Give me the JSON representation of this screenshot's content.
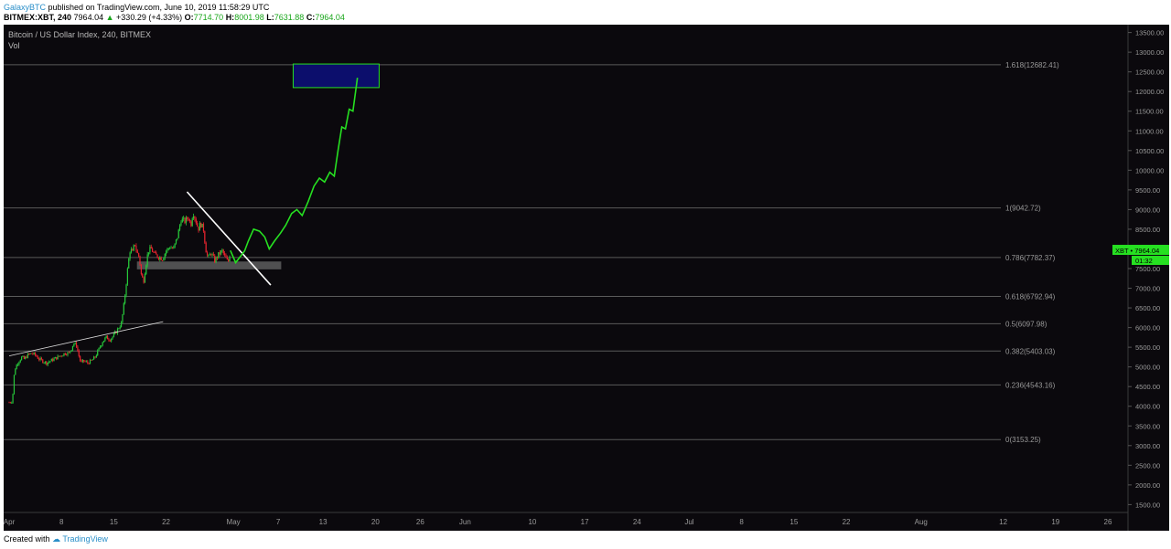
{
  "header": {
    "author": "GalaxyBTC",
    "published_text": "published on TradingView.com, June 10, 2019 11:58:29 UTC",
    "symbol_line": "BITMEX:XBT, 240",
    "last": "7964.04",
    "change_arrow": "▲",
    "change": "+330.29 (+4.33%)",
    "o_label": "O:",
    "o": "7714.70",
    "h_label": "H:",
    "h": "8001.98",
    "l_label": "L:",
    "l": "7631.88",
    "c_label": "C:",
    "c": "7964.04"
  },
  "footer": {
    "created_with": "Created with",
    "brand": "TradingView"
  },
  "colors": {
    "background": "#0b090d",
    "candle_up": "#27c93a",
    "candle_down": "#e8242e",
    "projection": "#26e021",
    "fib_line": "#5a5a5a",
    "target_box_fill": "#0c0e6c",
    "target_box_border": "#26e021",
    "support_zone": "#8a8a8a",
    "trendline": "#ffffff",
    "axis_text": "#9a9a9a"
  },
  "chart_data": {
    "type": "candlestick",
    "title": "Bitcoin / US Dollar Index, 240, BITMEX",
    "subtitle": "Vol",
    "interval": "240",
    "x_tick_labels": [
      "Apr",
      "8",
      "15",
      "22",
      "May",
      "7",
      "13",
      "20",
      "26",
      "Jun",
      "10",
      "17",
      "24",
      "Jul",
      "8",
      "15",
      "22",
      "Aug",
      "12",
      "19",
      "26"
    ],
    "y_ticks": [
      1500,
      2000,
      2500,
      3000,
      3500,
      4000,
      4500,
      5000,
      5500,
      6000,
      6500,
      7000,
      7500,
      8000,
      8500,
      9000,
      9500,
      10000,
      10500,
      11000,
      11500,
      12000,
      12500,
      13000,
      13500
    ],
    "y_tick_labels": [
      "1500.00",
      "2000.00",
      "2500.00",
      "3000.00",
      "3500.00",
      "4000.00",
      "4500.00",
      "5000.00",
      "5500.00",
      "6000.00",
      "6500.00",
      "7000.00",
      "7500.00",
      "8000.00",
      "8500.00",
      "9000.00",
      "9500.00",
      "10000.00",
      "10500.00",
      "11000.00",
      "11500.00",
      "12000.00",
      "12500.00",
      "13000.00",
      "13500.00"
    ],
    "ylim": [
      1300,
      13700
    ],
    "fib_levels": [
      {
        "label": "1.618(12682.41)",
        "value": 12682.41
      },
      {
        "label": "1(9042.72)",
        "value": 9042.72
      },
      {
        "label": "0.786(7782.37)",
        "value": 7782.37
      },
      {
        "label": "0.618(6792.94)",
        "value": 6792.94
      },
      {
        "label": "0.5(6097.98)",
        "value": 6097.98
      },
      {
        "label": "0.382(5403.03)",
        "value": 5403.03
      },
      {
        "label": "0.236(4543.16)",
        "value": 4543.16
      },
      {
        "label": "0(3153.25)",
        "value": 3153.25
      }
    ],
    "price_series": [
      {
        "t": 0.0,
        "p": 4100
      },
      {
        "t": 0.2,
        "p": 4110
      },
      {
        "t": 0.45,
        "p": 4130
      },
      {
        "t": 0.6,
        "p": 4700
      },
      {
        "t": 0.8,
        "p": 4950
      },
      {
        "t": 1.0,
        "p": 5050
      },
      {
        "t": 1.3,
        "p": 5150
      },
      {
        "t": 1.7,
        "p": 5250
      },
      {
        "t": 2.0,
        "p": 5200
      },
      {
        "t": 2.5,
        "p": 5300
      },
      {
        "t": 3.0,
        "p": 5350
      },
      {
        "t": 3.5,
        "p": 5300
      },
      {
        "t": 4.0,
        "p": 5200
      },
      {
        "t": 4.5,
        "p": 5150
      },
      {
        "t": 5.0,
        "p": 5100
      },
      {
        "t": 5.5,
        "p": 5150
      },
      {
        "t": 6.0,
        "p": 5200
      },
      {
        "t": 6.5,
        "p": 5250
      },
      {
        "t": 7.0,
        "p": 5300
      },
      {
        "t": 7.5,
        "p": 5350
      },
      {
        "t": 8.0,
        "p": 5350
      },
      {
        "t": 8.3,
        "p": 5450
      },
      {
        "t": 8.6,
        "p": 5600
      },
      {
        "t": 9.0,
        "p": 5550
      },
      {
        "t": 9.3,
        "p": 5300
      },
      {
        "t": 9.6,
        "p": 5100
      },
      {
        "t": 10.0,
        "p": 5150
      },
      {
        "t": 10.5,
        "p": 5100
      },
      {
        "t": 11.0,
        "p": 5150
      },
      {
        "t": 11.5,
        "p": 5250
      },
      {
        "t": 12.0,
        "p": 5450
      },
      {
        "t": 12.5,
        "p": 5650
      },
      {
        "t": 13.0,
        "p": 5750
      },
      {
        "t": 13.5,
        "p": 5700
      },
      {
        "t": 14.0,
        "p": 5800
      },
      {
        "t": 14.5,
        "p": 5950
      },
      {
        "t": 15.0,
        "p": 6100
      },
      {
        "t": 15.3,
        "p": 6500
      },
      {
        "t": 15.6,
        "p": 7000
      },
      {
        "t": 15.9,
        "p": 7600
      },
      {
        "t": 16.2,
        "p": 8000
      },
      {
        "t": 16.5,
        "p": 7900
      },
      {
        "t": 16.8,
        "p": 8150
      },
      {
        "t": 17.1,
        "p": 7900
      },
      {
        "t": 17.4,
        "p": 7800
      },
      {
        "t": 17.7,
        "p": 7300
      },
      {
        "t": 18.0,
        "p": 7200
      },
      {
        "t": 18.3,
        "p": 7600
      },
      {
        "t": 18.6,
        "p": 7950
      },
      {
        "t": 19.0,
        "p": 8000
      },
      {
        "t": 19.5,
        "p": 7850
      },
      {
        "t": 20.0,
        "p": 7800
      },
      {
        "t": 20.5,
        "p": 7750
      },
      {
        "t": 21.0,
        "p": 7950
      },
      {
        "t": 21.5,
        "p": 8050
      },
      {
        "t": 22.0,
        "p": 8000
      },
      {
        "t": 22.5,
        "p": 8300
      },
      {
        "t": 23.0,
        "p": 8750
      },
      {
        "t": 23.5,
        "p": 8700
      },
      {
        "t": 24.0,
        "p": 8800
      },
      {
        "t": 24.3,
        "p": 8600
      },
      {
        "t": 24.6,
        "p": 8950
      },
      {
        "t": 25.0,
        "p": 8700
      },
      {
        "t": 25.3,
        "p": 8500
      },
      {
        "t": 25.6,
        "p": 8650
      },
      {
        "t": 26.0,
        "p": 8500
      },
      {
        "t": 26.3,
        "p": 8000
      },
      {
        "t": 26.6,
        "p": 7750
      },
      {
        "t": 27.0,
        "p": 7900
      },
      {
        "t": 27.5,
        "p": 7700
      },
      {
        "t": 28.0,
        "p": 7850
      },
      {
        "t": 28.5,
        "p": 7950
      },
      {
        "t": 29.0,
        "p": 7750
      },
      {
        "t": 29.3,
        "p": 7650
      },
      {
        "t": 29.6,
        "p": 7960
      }
    ],
    "projection_path": [
      {
        "t": 29.6,
        "p": 7960
      },
      {
        "t": 30.3,
        "p": 7650
      },
      {
        "t": 30.9,
        "p": 7800
      },
      {
        "t": 31.5,
        "p": 7950
      },
      {
        "t": 32.0,
        "p": 8200
      },
      {
        "t": 32.7,
        "p": 8500
      },
      {
        "t": 33.5,
        "p": 8450
      },
      {
        "t": 34.2,
        "p": 8300
      },
      {
        "t": 34.8,
        "p": 8000
      },
      {
        "t": 35.5,
        "p": 8200
      },
      {
        "t": 36.3,
        "p": 8400
      },
      {
        "t": 37.0,
        "p": 8600
      },
      {
        "t": 37.8,
        "p": 8900
      },
      {
        "t": 38.5,
        "p": 9000
      },
      {
        "t": 39.2,
        "p": 8850
      },
      {
        "t": 40.0,
        "p": 9200
      },
      {
        "t": 40.8,
        "p": 9600
      },
      {
        "t": 41.5,
        "p": 9800
      },
      {
        "t": 42.2,
        "p": 9700
      },
      {
        "t": 42.9,
        "p": 9950
      },
      {
        "t": 43.5,
        "p": 9850
      },
      {
        "t": 44.0,
        "p": 10500
      },
      {
        "t": 44.5,
        "p": 11100
      },
      {
        "t": 45.0,
        "p": 11050
      },
      {
        "t": 45.5,
        "p": 11550
      },
      {
        "t": 46.0,
        "p": 11500
      },
      {
        "t": 46.6,
        "p": 12350
      }
    ],
    "support_zone": {
      "t_start": 17.1,
      "t_end": 36.4,
      "p_low": 7480,
      "p_high": 7680
    },
    "target_zone": {
      "t_start": 38.0,
      "t_end": 49.5,
      "p_low": 12100,
      "p_high": 12700
    },
    "trendline_down": {
      "t1": 23.8,
      "p1": 9450,
      "t2": 35.0,
      "p2": 7080
    },
    "trendline_up": {
      "t1": 0.0,
      "p1": 5280,
      "t2": 20.6,
      "p2": 6150
    },
    "last_price": {
      "value": 7964.04,
      "label": "XBT",
      "price_label": "7964.04",
      "countdown": "01:32"
    }
  }
}
